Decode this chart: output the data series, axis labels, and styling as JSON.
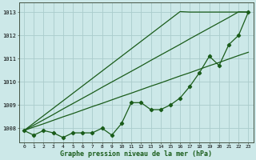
{
  "xlabel": "Graphe pression niveau de la mer (hPa)",
  "background_color": "#cce8e8",
  "grid_color": "#aacccc",
  "line_color": "#1a5c1a",
  "x": [
    0,
    1,
    2,
    3,
    4,
    5,
    6,
    7,
    8,
    9,
    10,
    11,
    12,
    13,
    14,
    15,
    16,
    17,
    18,
    19,
    20,
    21,
    22,
    23
  ],
  "y_main": [
    1007.9,
    1007.7,
    1007.9,
    1007.8,
    1007.6,
    1007.8,
    1007.8,
    1007.8,
    1008.0,
    1007.7,
    1008.2,
    1009.1,
    1009.1,
    1008.8,
    1008.8,
    1009.0,
    1009.3,
    1009.8,
    1010.4,
    1011.1,
    1010.7,
    1011.6,
    1012.0,
    1013.0
  ],
  "y_linear1": [
    1007.9,
    1008.22,
    1008.54,
    1008.86,
    1009.18,
    1009.5,
    1009.82,
    1010.14,
    1010.46,
    1010.78,
    1011.1,
    1011.42,
    1011.74,
    1012.06,
    1012.38,
    1012.7,
    1013.02,
    1013.0,
    1013.0,
    1013.0,
    1013.0,
    1013.0,
    1013.0,
    1013.0
  ],
  "y_linear2": [
    1007.9,
    1008.05,
    1008.19,
    1008.34,
    1008.49,
    1008.63,
    1008.78,
    1008.93,
    1009.07,
    1009.22,
    1009.37,
    1009.51,
    1009.66,
    1009.81,
    1009.95,
    1010.1,
    1010.25,
    1010.39,
    1010.54,
    1010.69,
    1010.83,
    1010.98,
    1011.13,
    1011.27
  ],
  "y_linear3": [
    1007.9,
    1008.13,
    1008.36,
    1008.59,
    1008.83,
    1009.06,
    1009.29,
    1009.52,
    1009.76,
    1009.99,
    1010.22,
    1010.45,
    1010.68,
    1010.92,
    1011.15,
    1011.38,
    1011.61,
    1011.85,
    1012.08,
    1012.31,
    1012.54,
    1012.77,
    1013.01,
    1013.0
  ],
  "ylim": [
    1007.4,
    1013.4
  ],
  "yticks": [
    1008,
    1009,
    1010,
    1011,
    1012,
    1013
  ],
  "xlim": [
    -0.5,
    23.5
  ],
  "figsize": [
    3.2,
    2.0
  ],
  "dpi": 100
}
